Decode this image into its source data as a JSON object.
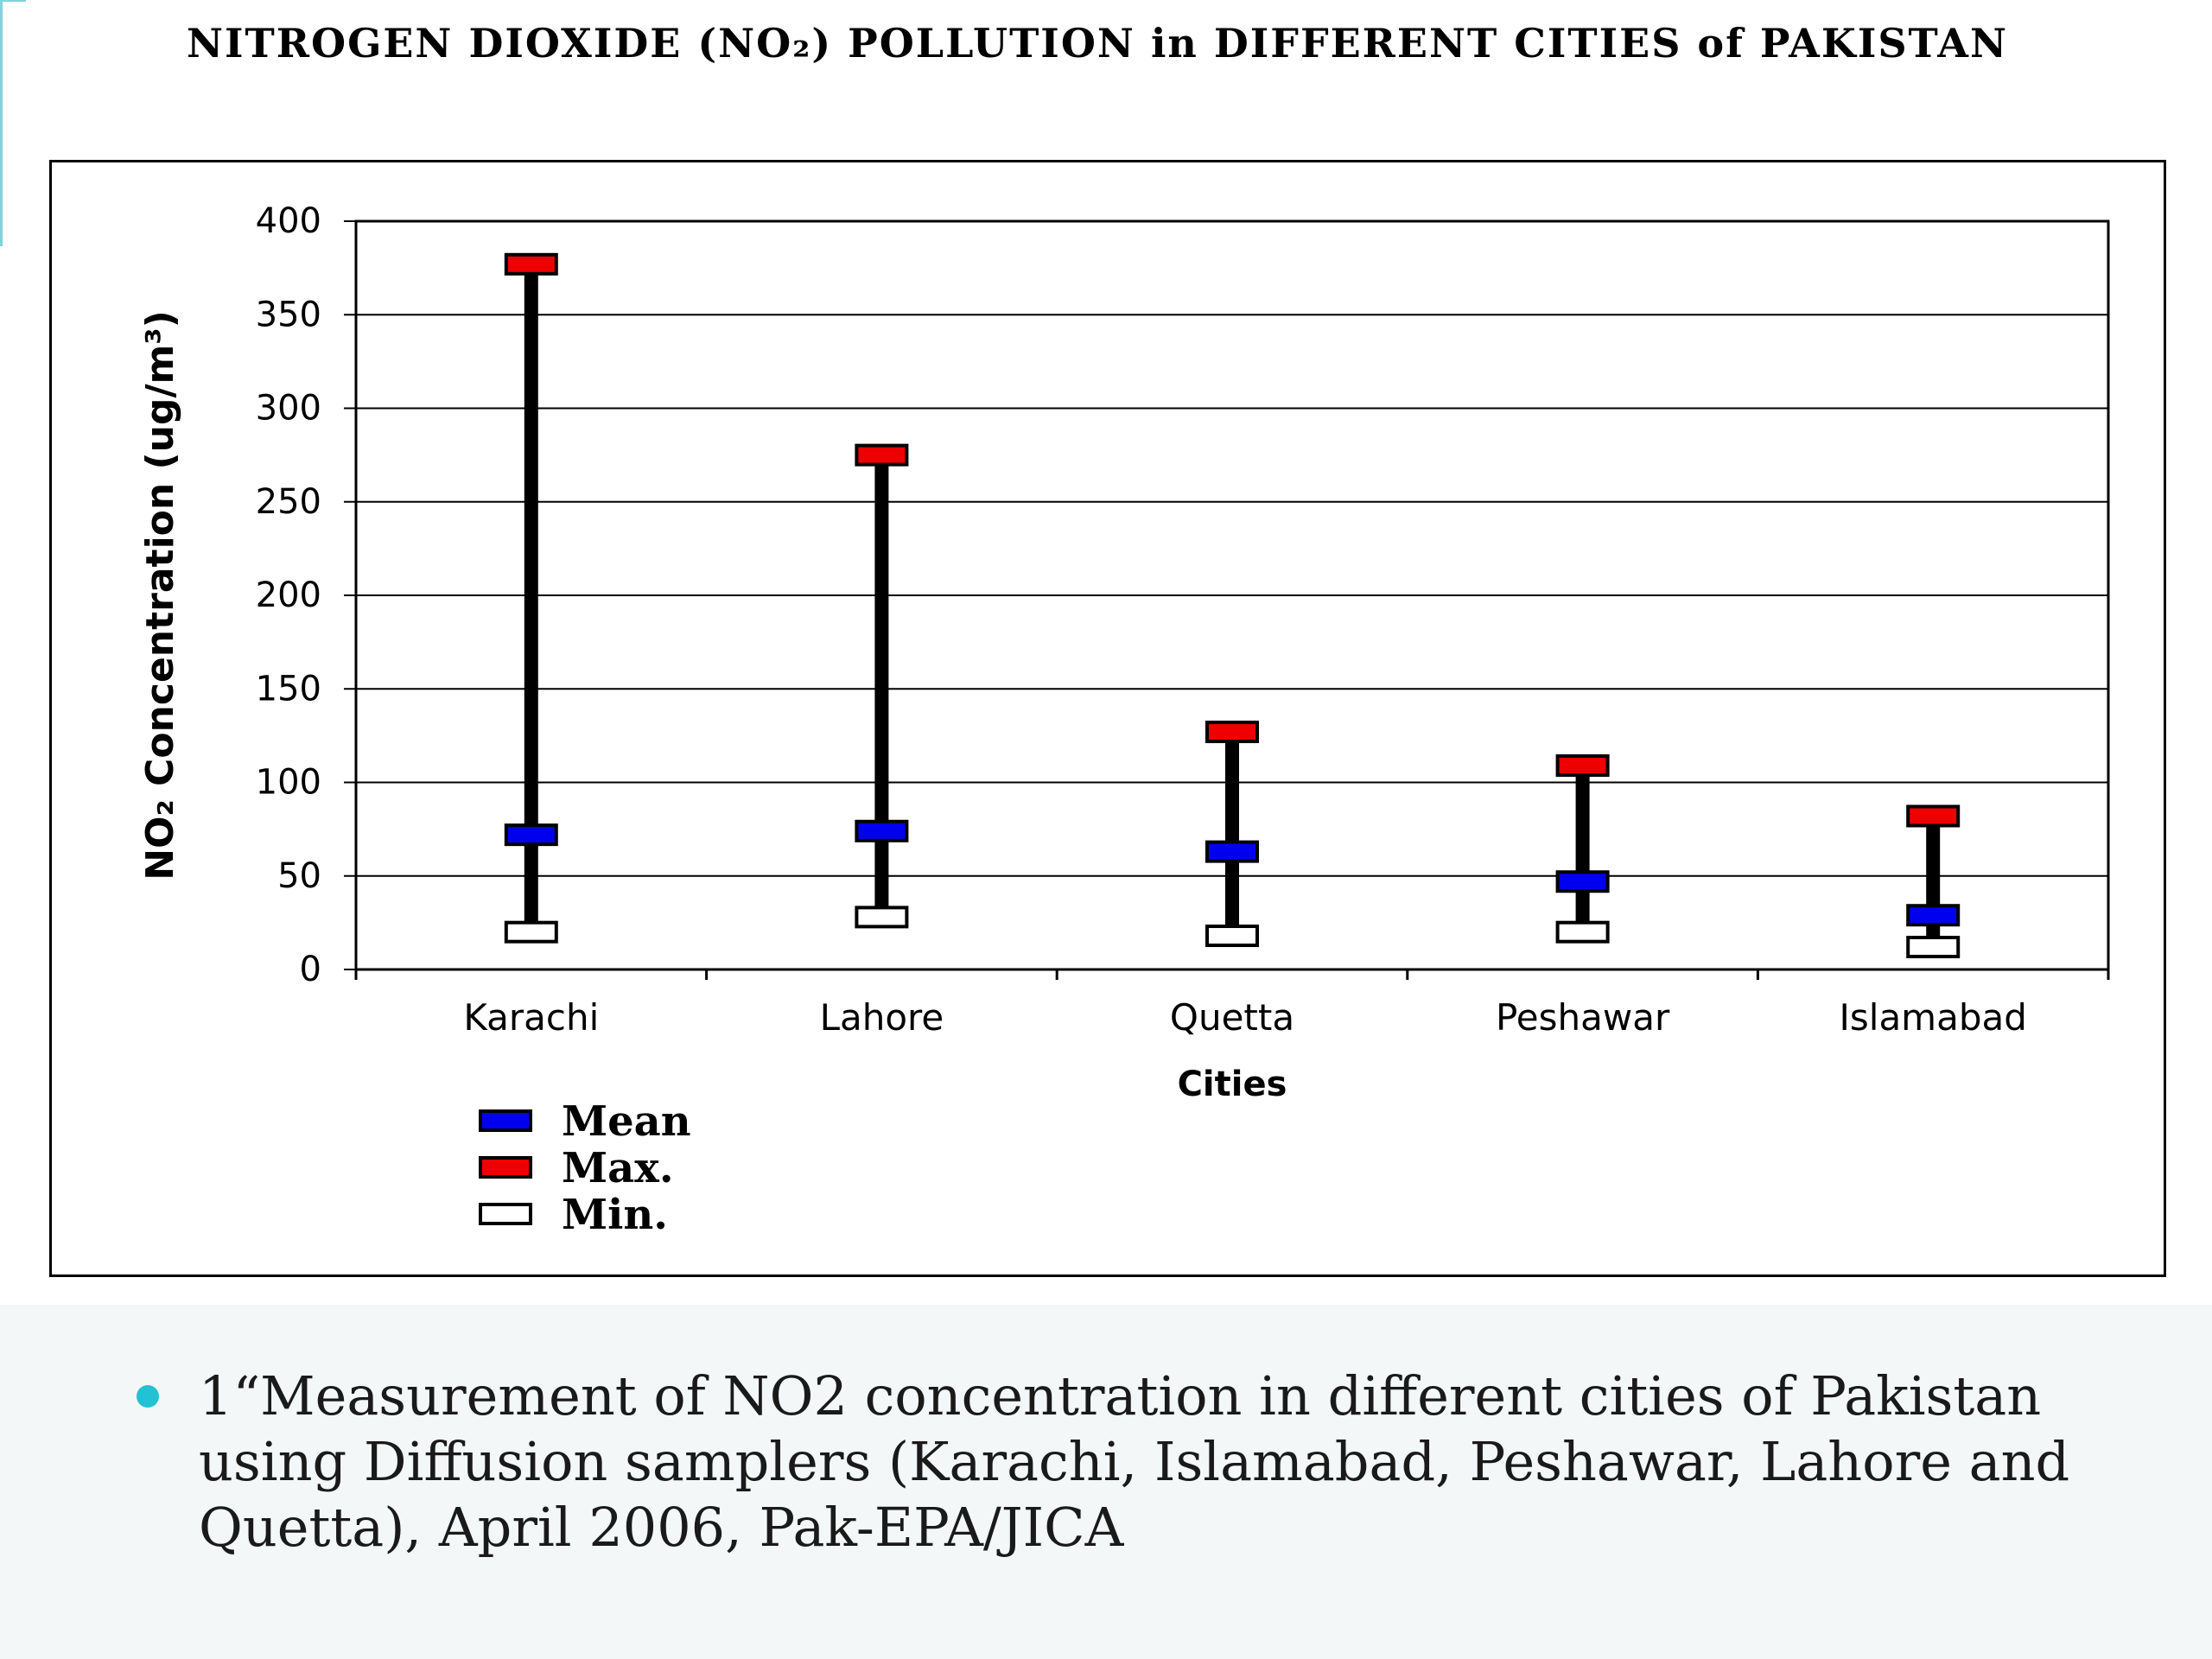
{
  "slide": {
    "caption": "1“Measurement of NO2 concentration in different cities of Pakistan using Diffusion samplers (Karachi, Islamabad, Peshawar, Lahore and Quetta), April 2006, Pak-EPA/JICA",
    "bullet_color": "#22c2d4"
  },
  "chart_data": {
    "type": "range",
    "title": "NITROGEN DIOXIDE (NO₂) POLLUTION in DIFFERENT CITIES of PAKISTAN",
    "xlabel": "Cities",
    "ylabel": "NO₂ Concentration (ug/m³)",
    "ylim": [
      0,
      400
    ],
    "yticks": [
      0,
      50,
      100,
      150,
      200,
      250,
      300,
      350,
      400
    ],
    "grid": true,
    "legend_position": "bottom-left",
    "categories": [
      "Karachi",
      "Lahore",
      "Quetta",
      "Peshawar",
      "Islamabad"
    ],
    "series": [
      {
        "name": "Mean",
        "color": "#0000ee",
        "values": [
          72,
          74,
          63,
          47,
          29
        ]
      },
      {
        "name": "Max.",
        "color": "#ee0000",
        "values": [
          377,
          275,
          127,
          109,
          82
        ]
      },
      {
        "name": "Min.",
        "color": "#ffffff",
        "values": [
          20,
          28,
          18,
          20,
          12
        ]
      }
    ]
  }
}
